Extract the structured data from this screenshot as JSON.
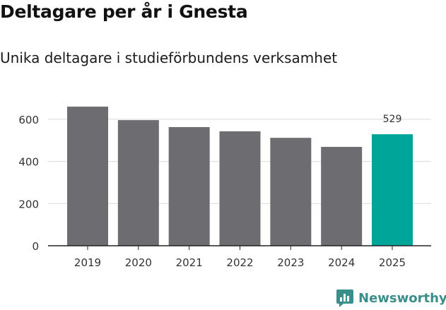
{
  "title": "Deltagare per år i Gnesta",
  "subtitle": "Unika deltagare i studieförbundens verksamhet",
  "brand": {
    "name": "Newsworthy",
    "icon": "newsworthy-logo-icon",
    "color": "#3a8f8a"
  },
  "colors": {
    "bar": "#6d6c70",
    "highlight": "#00a59a",
    "grid": "#d9d9d9",
    "axis": "#222222",
    "text": "#333333"
  },
  "chart_data": {
    "type": "bar",
    "title": "Deltagare per år i Gnesta",
    "subtitle": "Unika deltagare i studieförbundens verksamhet",
    "xlabel": "",
    "ylabel": "",
    "categories": [
      "2019",
      "2020",
      "2021",
      "2022",
      "2023",
      "2024",
      "2025"
    ],
    "values": [
      660,
      596,
      563,
      543,
      512,
      469,
      529
    ],
    "highlight_index": 6,
    "data_labels": [
      {
        "index": 6,
        "text": "529"
      }
    ],
    "yticks": [
      0,
      200,
      400,
      600
    ],
    "ylim": [
      0,
      660
    ],
    "grid": true,
    "legend": "none"
  }
}
